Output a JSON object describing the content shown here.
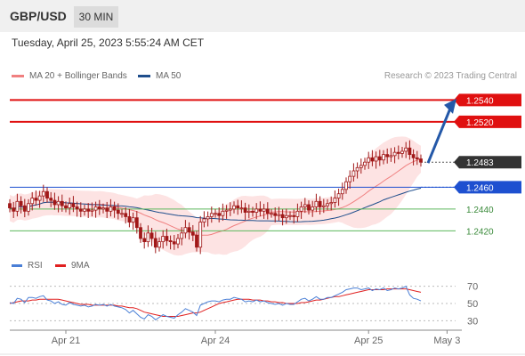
{
  "header": {
    "pair": "GBP/USD",
    "timeframe": "30 MIN"
  },
  "datetime": "Tuesday, April 25, 2023 5:55:24 AM CET",
  "legend": {
    "ma20": {
      "label": "MA 20 + Bollinger Bands",
      "color": "#f08080"
    },
    "ma50": {
      "label": "MA 50",
      "color": "#1f4e8c"
    },
    "credit": "Research © 2023 Trading Central"
  },
  "rsi_legend": {
    "rsi": {
      "label": "RSI",
      "color": "#4a7fd6"
    },
    "ma9": {
      "label": "9MA",
      "color": "#e02020"
    }
  },
  "colors": {
    "resistance": "#e01010",
    "pivot": "#1e50d0",
    "support": "#5cb85c",
    "bollinger": "#fde3e3",
    "candle": "#a01818",
    "last": "#333333"
  },
  "chart_data": [
    {
      "type": "candlestick",
      "ylim": [
        1.2395,
        1.2555
      ],
      "price_levels": [
        {
          "label": "1.2540",
          "value": 1.254,
          "kind": "resistance"
        },
        {
          "label": "1.2520",
          "value": 1.252,
          "kind": "resistance"
        },
        {
          "label": "1.2483",
          "value": 1.2483,
          "kind": "last"
        },
        {
          "label": "1.2460",
          "value": 1.246,
          "kind": "pivot"
        },
        {
          "label": "1.2440",
          "value": 1.244,
          "kind": "support"
        },
        {
          "label": "1.2420",
          "value": 1.242,
          "kind": "support"
        }
      ],
      "x_ticks": [
        "Apr 21",
        "Apr 24",
        "Apr 25",
        "May 3"
      ],
      "x_tick_index": [
        15,
        55,
        96,
        117
      ],
      "n_slots": 119,
      "target": {
        "from": 1.2483,
        "to": 1.2538
      },
      "close": [
        1.2441,
        1.2438,
        1.2447,
        1.2443,
        1.2438,
        1.2445,
        1.245,
        1.2448,
        1.2452,
        1.2456,
        1.245,
        1.2448,
        1.2444,
        1.2447,
        1.2443,
        1.2441,
        1.2445,
        1.2442,
        1.244,
        1.2438,
        1.244,
        1.2438,
        1.2439,
        1.2442,
        1.244,
        1.2441,
        1.2438,
        1.2442,
        1.2439,
        1.2436,
        1.2436,
        1.2433,
        1.2428,
        1.2432,
        1.2423,
        1.2413,
        1.241,
        1.2418,
        1.2413,
        1.2405,
        1.241,
        1.2415,
        1.2411,
        1.241,
        1.2408,
        1.2413,
        1.2418,
        1.2423,
        1.2419,
        1.2416,
        1.2405,
        1.2428,
        1.2431,
        1.2433,
        1.2436,
        1.2436,
        1.2434,
        1.2438,
        1.2439,
        1.244,
        1.2443,
        1.2441,
        1.2441,
        1.2437,
        1.2438,
        1.2437,
        1.244,
        1.2438,
        1.244,
        1.2436,
        1.2436,
        1.2434,
        1.2435,
        1.2432,
        1.2434,
        1.2434,
        1.2433,
        1.2438,
        1.2442,
        1.2444,
        1.2439,
        1.2442,
        1.2447,
        1.2442,
        1.2443,
        1.2445,
        1.2446,
        1.245,
        1.2454,
        1.2458,
        1.2465,
        1.247,
        1.2475,
        1.2478,
        1.248,
        1.2483,
        1.2487,
        1.2484,
        1.2488,
        1.2485,
        1.249,
        1.2488,
        1.2489,
        1.2492,
        1.2491,
        1.2493,
        1.2496,
        1.249,
        1.2487,
        1.2486,
        1.2483
      ]
    },
    {
      "type": "line",
      "name": "RSI",
      "ylim": [
        20,
        80
      ],
      "y_ticks": [
        70,
        50,
        30
      ],
      "y_tick_labels": [
        "70",
        "50",
        "30"
      ],
      "rsi": [
        51,
        50,
        56,
        55,
        51,
        57,
        57,
        56,
        58,
        59,
        54,
        53,
        50,
        52,
        49,
        48,
        51,
        49,
        48,
        47,
        48,
        46,
        47,
        49,
        48,
        49,
        47,
        49,
        47,
        46,
        45,
        43,
        39,
        42,
        38,
        34,
        32,
        37,
        35,
        31,
        34,
        37,
        35,
        34,
        33,
        37,
        40,
        44,
        42,
        40,
        36,
        48,
        50,
        52,
        53,
        53,
        52,
        54,
        55,
        55,
        57,
        56,
        55,
        52,
        53,
        52,
        54,
        52,
        53,
        51,
        50,
        49,
        50,
        48,
        50,
        49,
        49,
        52,
        55,
        56,
        53,
        55,
        58,
        55,
        55,
        57,
        57,
        59,
        61,
        63,
        66,
        67,
        68,
        68,
        66,
        67,
        68,
        65,
        67,
        66,
        68,
        65,
        66,
        68,
        67,
        68,
        70,
        60,
        56,
        55,
        53
      ],
      "ma9": [
        50,
        51,
        52,
        53,
        53,
        53,
        54,
        54,
        55,
        55,
        55,
        55,
        55,
        55,
        54,
        53,
        52,
        51,
        50,
        49,
        49,
        49,
        48,
        48,
        48,
        48,
        48,
        48,
        48,
        47,
        47,
        46,
        45,
        45,
        44,
        42,
        40,
        39,
        38,
        37,
        36,
        35,
        35,
        35,
        35,
        35,
        36,
        37,
        38,
        39,
        39,
        40,
        42,
        44,
        46,
        48,
        50,
        51,
        52,
        53,
        54,
        55,
        55,
        55,
        55,
        54,
        54,
        54,
        53,
        53,
        52,
        52,
        51,
        51,
        50,
        50,
        50,
        50,
        51,
        51,
        52,
        53,
        54,
        54,
        55,
        56,
        57,
        58,
        58,
        59,
        60,
        61,
        62,
        63,
        64,
        65,
        66,
        66,
        66,
        66,
        66,
        67,
        67,
        67,
        67,
        67,
        67,
        66,
        65,
        64,
        63
      ]
    }
  ]
}
